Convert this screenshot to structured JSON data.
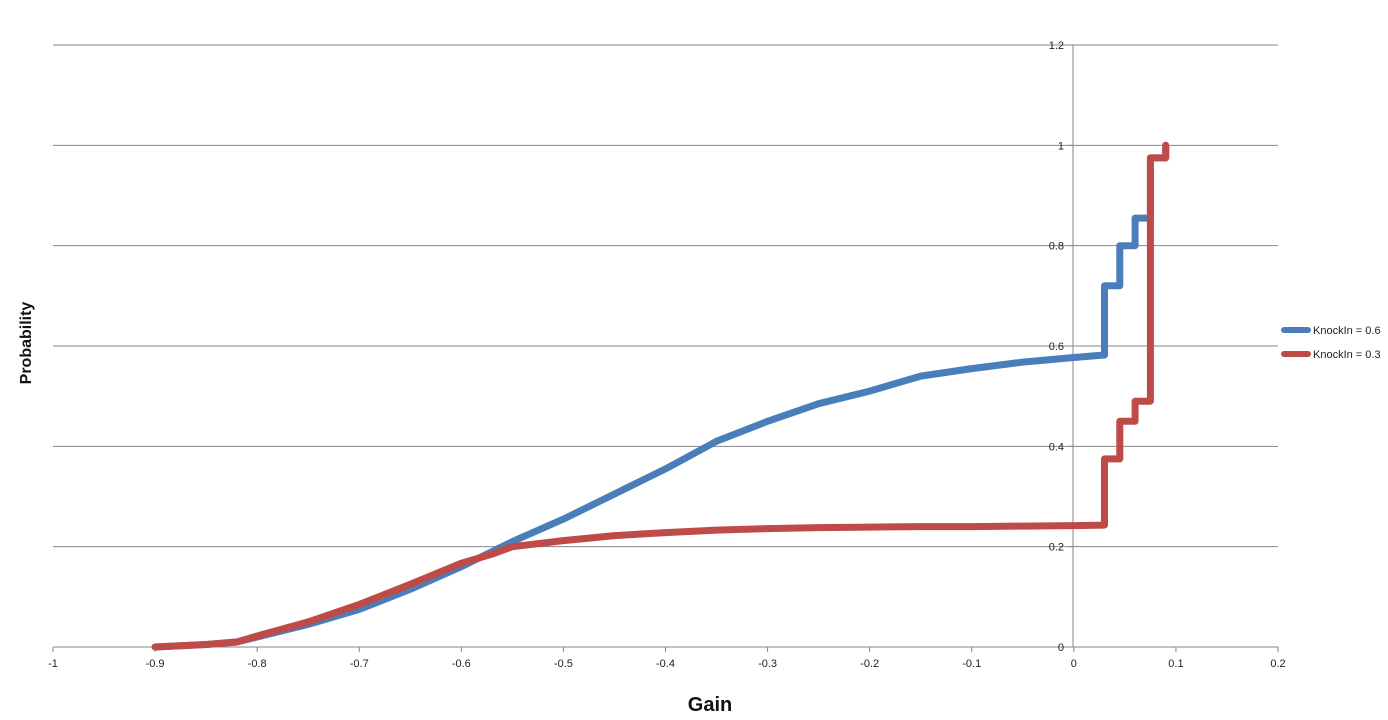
{
  "chart_data": {
    "type": "line",
    "title": "",
    "xlabel": "Gain",
    "ylabel": "Probability",
    "xlim": [
      -1,
      0.2
    ],
    "ylim": [
      0,
      1.2
    ],
    "x_ticks": [
      -1,
      -0.9,
      -0.8,
      -0.7,
      -0.6,
      -0.5,
      -0.4,
      -0.3,
      -0.2,
      -0.1,
      0,
      0.1,
      0.2
    ],
    "x_tick_labels": [
      "-1",
      "-0.9",
      "-0.8",
      "-0.7",
      "-0.6",
      "-0.5",
      "-0.4",
      "-0.3",
      "-0.2",
      "-0.1",
      "0",
      "0.1",
      "0.2"
    ],
    "y_ticks": [
      0,
      0.2,
      0.4,
      0.6,
      0.8,
      1,
      1.2
    ],
    "y_tick_labels": [
      "0",
      "0.2",
      "0.4",
      "0.6",
      "0.8",
      "1",
      "1.2"
    ],
    "grid": "horizontal",
    "legend_position": "right",
    "series": [
      {
        "name": "KnockIn = 0.6",
        "color": "#4a7ebb",
        "x": [
          -0.9,
          -0.85,
          -0.82,
          -0.8,
          -0.75,
          -0.7,
          -0.65,
          -0.6,
          -0.55,
          -0.5,
          -0.45,
          -0.4,
          -0.35,
          -0.3,
          -0.25,
          -0.2,
          -0.15,
          -0.1,
          -0.05,
          0,
          0.03,
          0.03,
          0.045,
          0.045,
          0.06,
          0.06,
          0.075,
          0.075,
          0.09,
          0.09
        ],
        "y": [
          0,
          0.005,
          0.01,
          0.02,
          0.045,
          0.075,
          0.115,
          0.16,
          0.21,
          0.255,
          0.305,
          0.355,
          0.41,
          0.45,
          0.485,
          0.51,
          0.54,
          0.555,
          0.568,
          0.577,
          0.582,
          0.72,
          0.72,
          0.8,
          0.8,
          0.855,
          0.855,
          0.975,
          0.975,
          1.0
        ]
      },
      {
        "name": "KnockIn = 0.3",
        "color": "#be4b48",
        "x": [
          -0.9,
          -0.85,
          -0.82,
          -0.8,
          -0.75,
          -0.7,
          -0.65,
          -0.6,
          -0.57,
          -0.55,
          -0.5,
          -0.45,
          -0.4,
          -0.35,
          -0.3,
          -0.25,
          -0.2,
          -0.15,
          -0.1,
          -0.05,
          0,
          0.03,
          0.03,
          0.045,
          0.045,
          0.06,
          0.06,
          0.075,
          0.075,
          0.09,
          0.09
        ],
        "y": [
          0,
          0.005,
          0.01,
          0.022,
          0.05,
          0.085,
          0.125,
          0.167,
          0.185,
          0.2,
          0.212,
          0.222,
          0.228,
          0.233,
          0.236,
          0.238,
          0.239,
          0.24,
          0.24,
          0.241,
          0.242,
          0.243,
          0.375,
          0.375,
          0.45,
          0.45,
          0.49,
          0.49,
          0.975,
          0.975,
          1.0
        ]
      }
    ]
  }
}
